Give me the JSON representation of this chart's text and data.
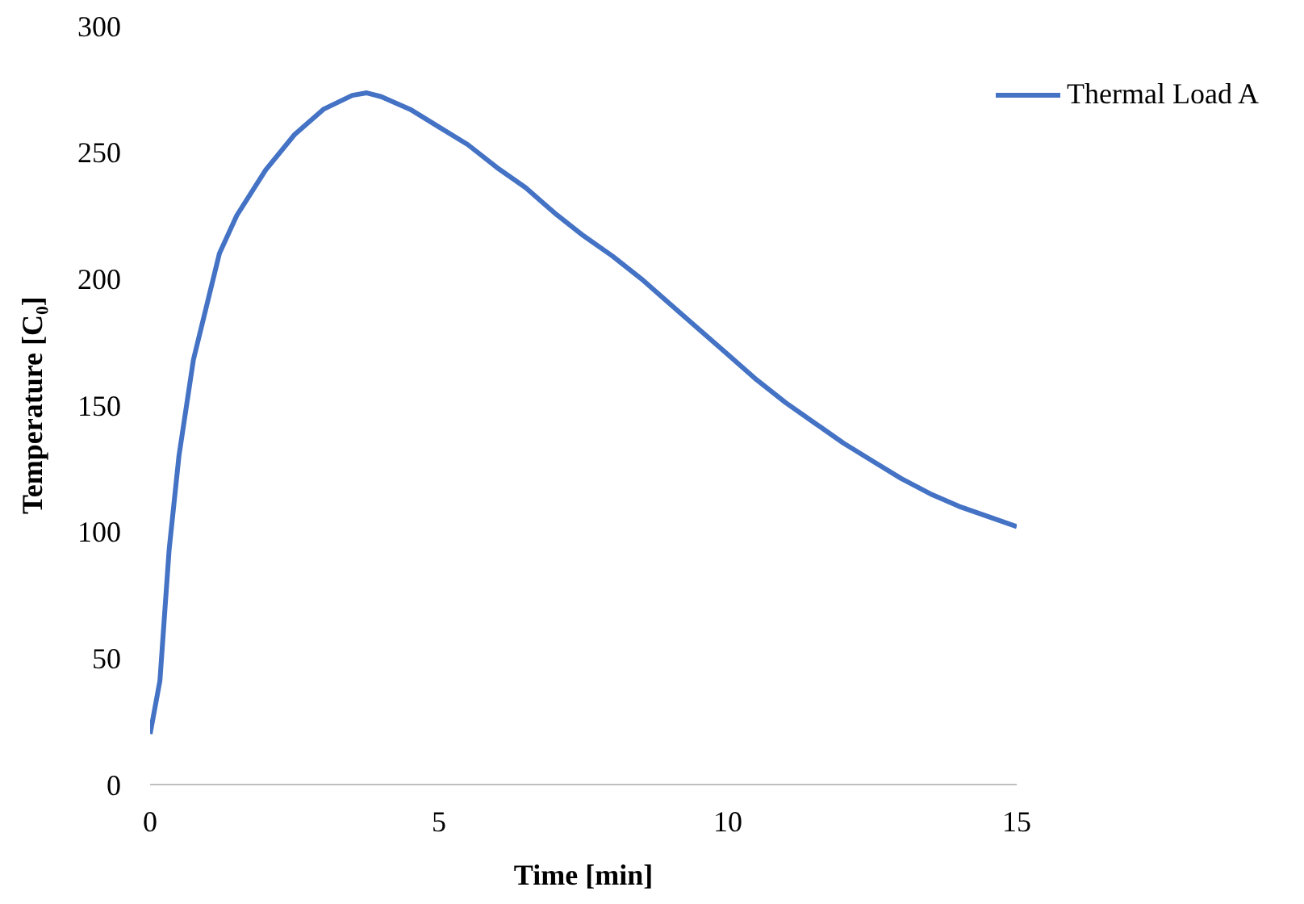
{
  "chart_data": {
    "type": "line",
    "xlabel": "Time [min]",
    "ylabel": "Temperature  [C₀]",
    "xlim": [
      0,
      15
    ],
    "xticks": [
      0,
      5,
      10,
      15
    ],
    "ylim": [
      0,
      300
    ],
    "yticks": [
      0,
      50,
      100,
      150,
      200,
      250,
      300
    ],
    "grid": false,
    "legend": "top right",
    "marker": "none",
    "line_style": "solid",
    "series": [
      {
        "name": "Thermal Load A",
        "color": "#4472c4",
        "x": [
          0,
          0.17,
          0.33,
          0.5,
          0.75,
          0.9,
          1.2,
          1.5,
          2,
          2.5,
          3,
          3.5,
          3.75,
          4,
          4.5,
          5,
          5.5,
          6,
          6.5,
          7,
          7.5,
          8,
          8.5,
          9,
          9.5,
          10,
          10.5,
          11,
          11.5,
          12,
          12.5,
          13,
          13.5,
          14,
          14.5,
          15
        ],
        "values": [
          20,
          41,
          93,
          130,
          168,
          182,
          210,
          225,
          243,
          257,
          267,
          272.5,
          273.5,
          272,
          267,
          260,
          253,
          244,
          236,
          226,
          217,
          209,
          200,
          190,
          180,
          170,
          160,
          151,
          143,
          135,
          128,
          121,
          115,
          110,
          106,
          102
        ]
      }
    ]
  }
}
